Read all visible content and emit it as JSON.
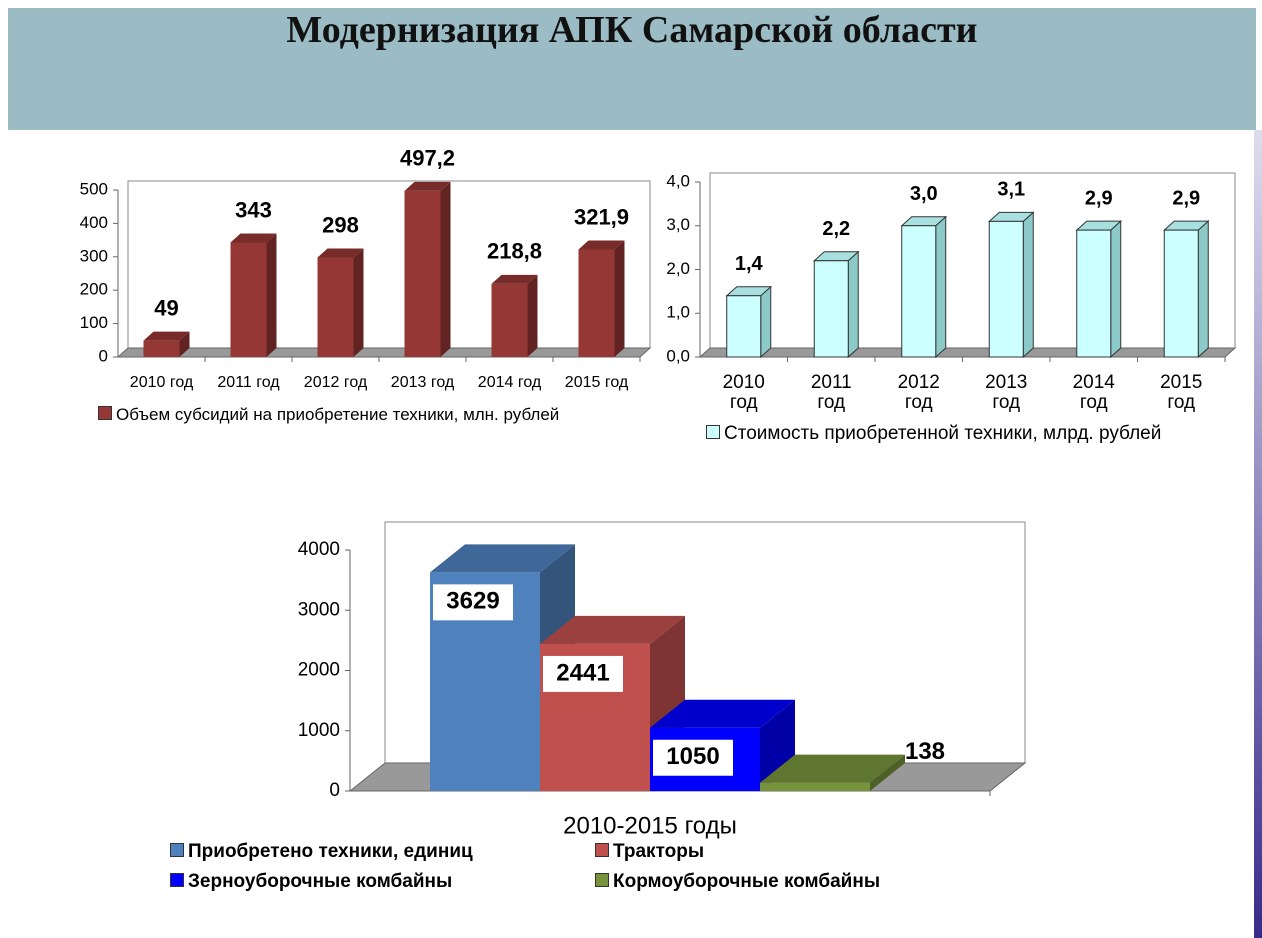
{
  "title": "Модернизация АПК Самарской области",
  "chart_data": [
    {
      "type": "bar",
      "categories": [
        "2010 год",
        "2011 год",
        "2012 год",
        "2013 год",
        "2014 год",
        "2015 год"
      ],
      "series": [
        {
          "name": "Объем субсидий на приобретение техники, млн. рублей",
          "color": "#953735",
          "values": [
            49,
            343,
            298,
            497.2,
            218.8,
            321.9
          ],
          "value_labels": [
            "49",
            "343",
            "298",
            "497,2",
            "218,8",
            "321,9"
          ]
        }
      ],
      "ylim": [
        0,
        500
      ],
      "yticks": [
        0,
        100,
        200,
        300,
        400,
        500
      ]
    },
    {
      "type": "bar",
      "categories": [
        "2010 год",
        "2011 год",
        "2012 год",
        "2013 год",
        "2014 год",
        "2015 год"
      ],
      "series": [
        {
          "name": "Стоимость приобретенной техники, млрд. рублей",
          "color": "#ccffff",
          "values": [
            1.4,
            2.2,
            3.0,
            3.1,
            2.9,
            2.9
          ],
          "value_labels": [
            "1,4",
            "2,2",
            "3,0",
            "3,1",
            "2,9",
            "2,9"
          ]
        }
      ],
      "ylim": [
        0,
        4
      ],
      "yticks": [
        {
          "value": 0,
          "label": "0,0"
        },
        {
          "value": 1,
          "label": "1,0"
        },
        {
          "value": 2,
          "label": "2,0"
        },
        {
          "value": 3,
          "label": "3,0"
        },
        {
          "value": 4,
          "label": "4,0"
        }
      ]
    },
    {
      "type": "bar",
      "categories": [
        "2010-2015 годы"
      ],
      "series": [
        {
          "name": "Приобретено техники, единиц",
          "color": "#4f81bd",
          "values": [
            3629
          ]
        },
        {
          "name": "Тракторы",
          "color": "#c0504d",
          "values": [
            2441
          ]
        },
        {
          "name": "Зерноуборочные комбайны",
          "color": "#0000ff",
          "values": [
            1050
          ]
        },
        {
          "name": "Кормоуборочные комбайны",
          "color": "#77933c",
          "values": [
            138
          ]
        }
      ],
      "ylim": [
        0,
        4000
      ],
      "yticks": [
        0,
        1000,
        2000,
        3000,
        4000
      ]
    }
  ]
}
